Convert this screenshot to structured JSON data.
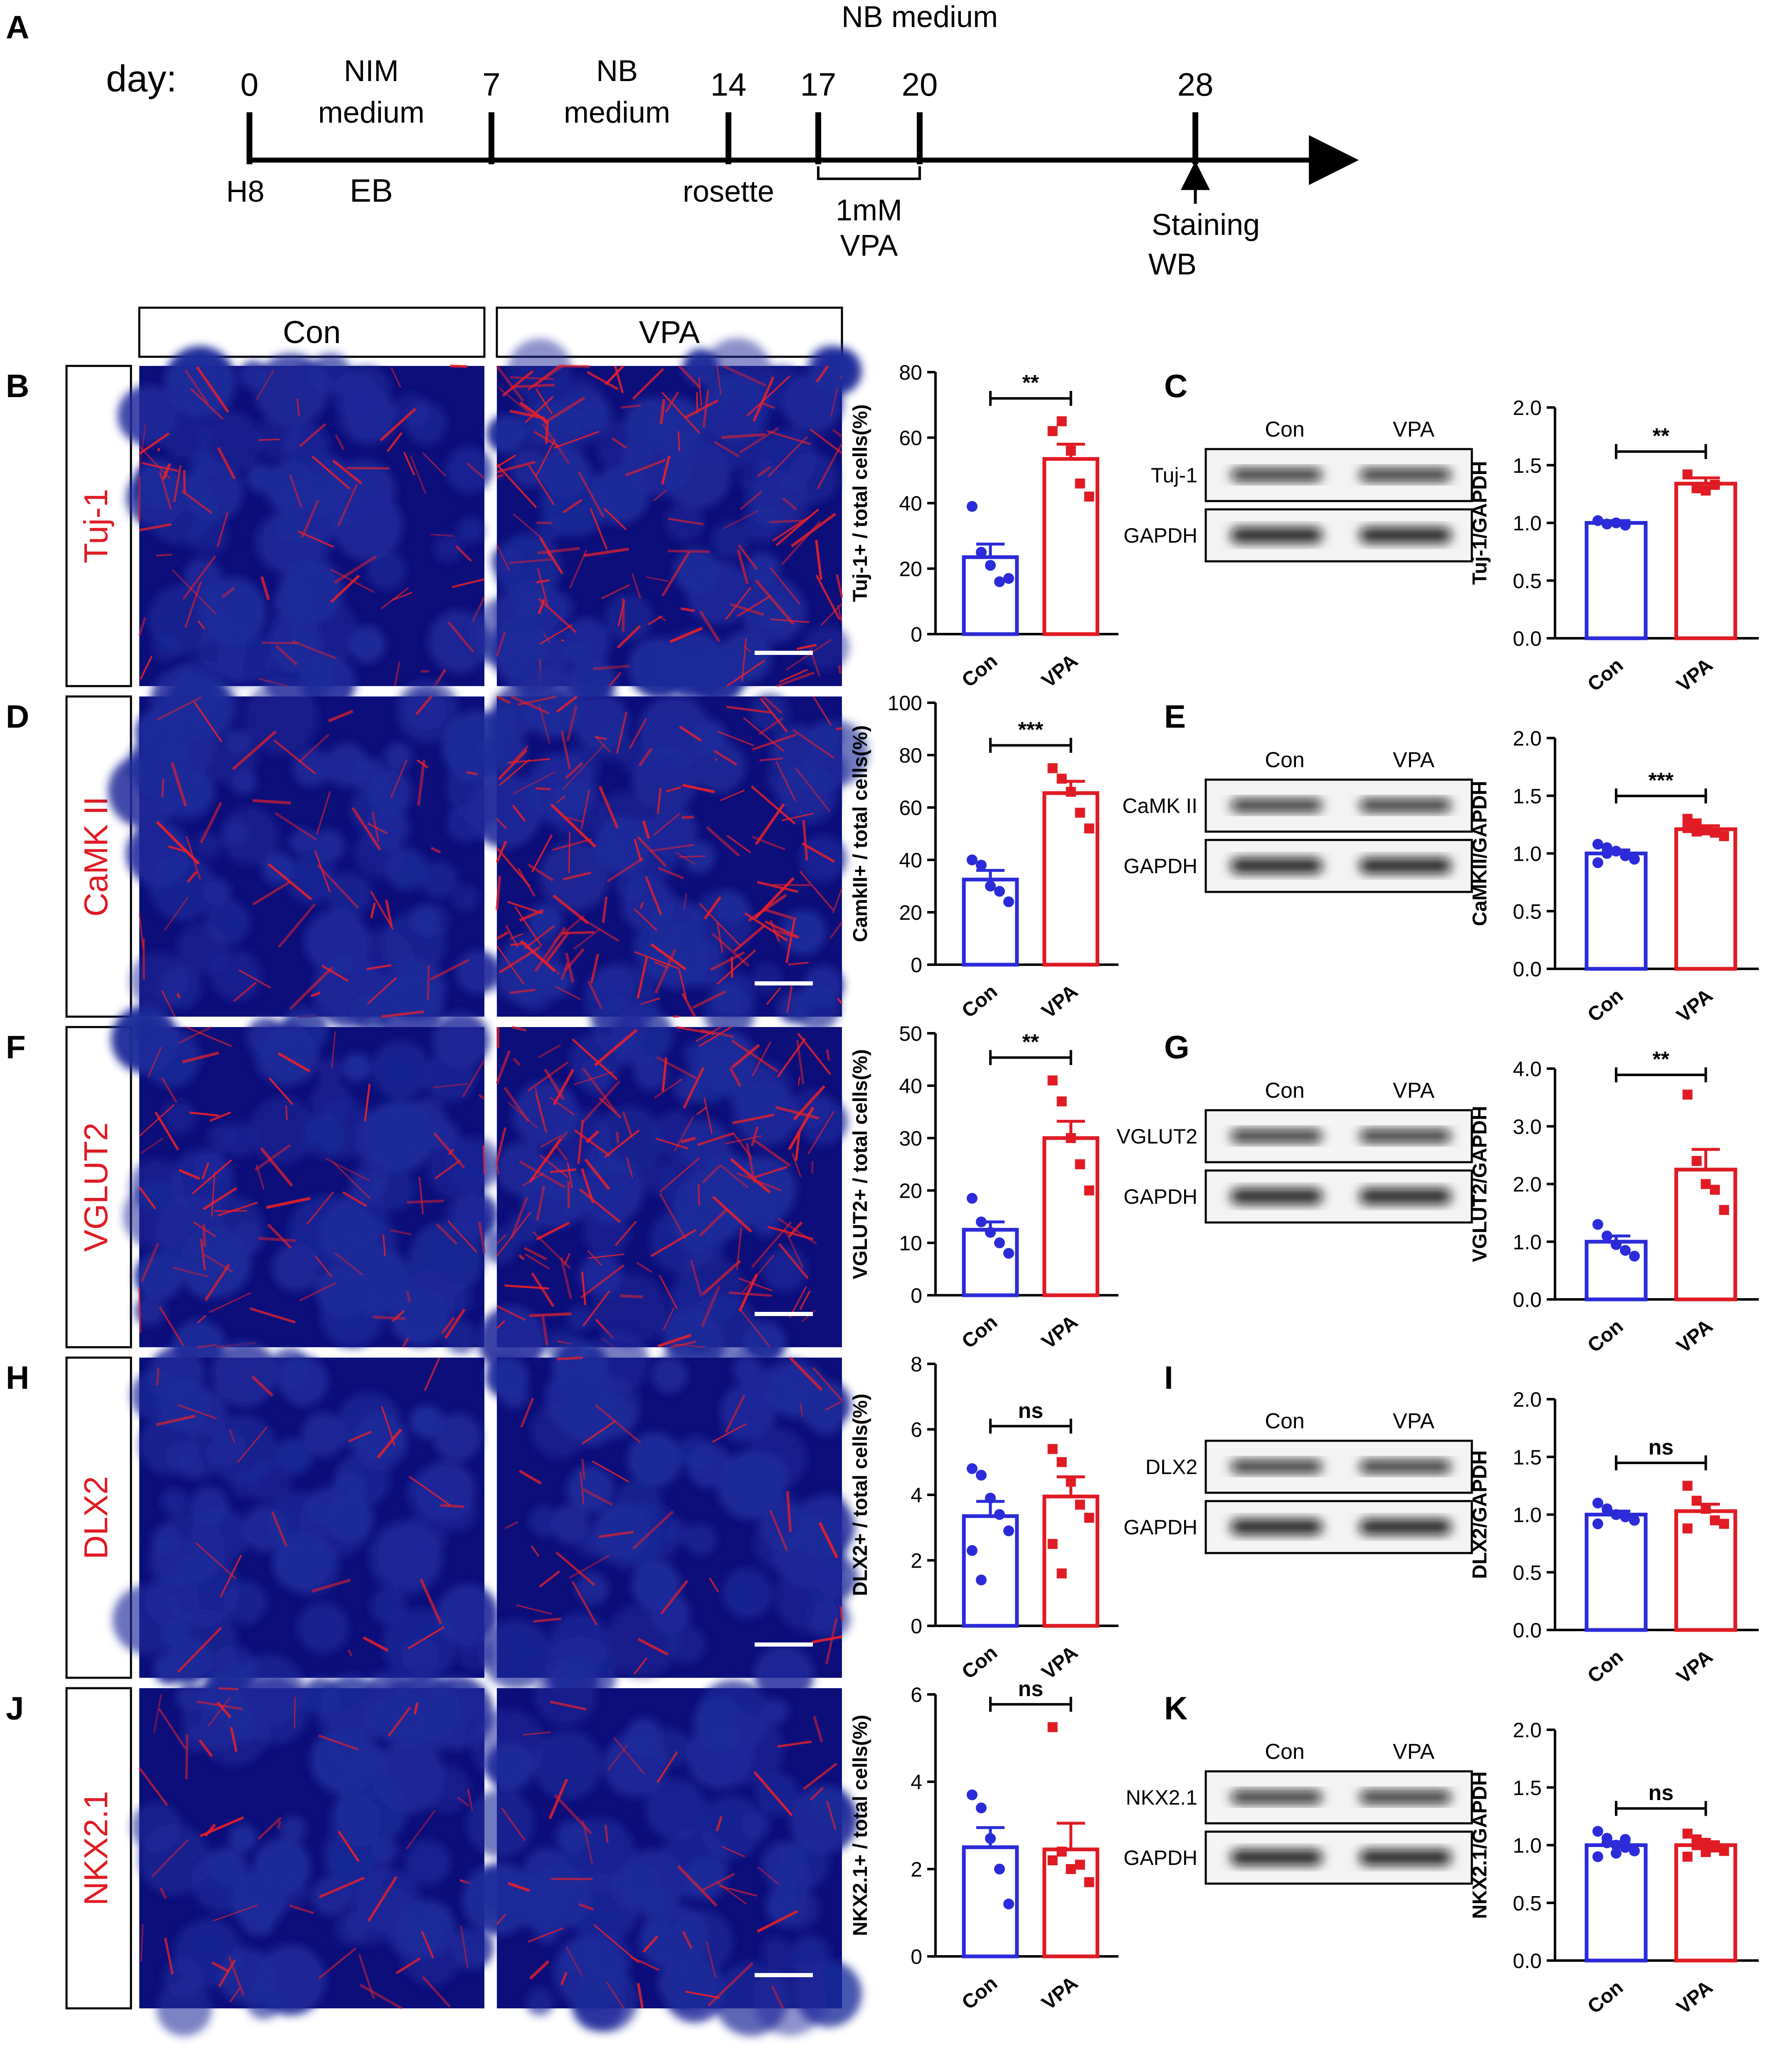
{
  "panels": {
    "A": "A",
    "B": "B",
    "C": "C",
    "D": "D",
    "E": "E",
    "F": "F",
    "G": "G",
    "H": "H",
    "I": "I",
    "J": "J",
    "K": "K"
  },
  "timeline": {
    "day_label": "day:",
    "days": [
      "0",
      "7",
      "14",
      "17",
      "20",
      "28"
    ],
    "stage_top": [
      "NIM",
      "medium",
      "NB",
      "medium",
      "NB medium"
    ],
    "below": [
      "H8",
      "EB",
      "rosette",
      "1mM",
      "VPA",
      "Staining",
      "WB"
    ]
  },
  "column_headers": [
    "Con",
    "VPA"
  ],
  "rows": [
    {
      "marker": "Tuj-1",
      "micrograph_colors": [
        "#1d2a9a",
        "#e8202a"
      ],
      "quant_chart": {
        "type": "bar",
        "categories": [
          "Con",
          "VPA"
        ],
        "values": [
          23.5,
          53.5
        ],
        "sem": [
          4,
          4.5
        ],
        "points": [
          [
            39,
            25,
            21,
            16,
            17
          ],
          [
            62,
            65,
            56,
            46,
            42
          ]
        ],
        "ylabel": "Tuj-1+ / total cells(%)",
        "ylim": [
          0,
          80
        ],
        "ticks": [
          "0",
          "20",
          "40",
          "60",
          "80"
        ],
        "significance": "**"
      },
      "blot": {
        "header": [
          "Con",
          "VPA"
        ],
        "bands": [
          "Tuj-1",
          "GAPDH"
        ]
      },
      "blot_chart": {
        "type": "bar",
        "categories": [
          "Con",
          "VPA"
        ],
        "values": [
          1.0,
          1.34
        ],
        "sem": [
          0.02,
          0.05
        ],
        "points": [
          [
            1.02,
            0.99,
            1.0,
            0.98
          ],
          [
            1.42,
            1.3,
            1.28,
            1.33
          ]
        ],
        "ylabel": "Tuj-1/GAPDH",
        "ylim": [
          0,
          2.0
        ],
        "ticks": [
          "0.0",
          "0.5",
          "1.0",
          "1.5",
          "2.0"
        ],
        "significance": "**"
      }
    },
    {
      "marker": "CaMK II",
      "micrograph_colors": [
        "#1d2a9a",
        "#e8202a"
      ],
      "quant_chart": {
        "type": "bar",
        "categories": [
          "Con",
          "VPA"
        ],
        "values": [
          32.5,
          65.5
        ],
        "sem": [
          3.5,
          4.5
        ],
        "points": [
          [
            40,
            38,
            30,
            28,
            24
          ],
          [
            75,
            71,
            66,
            58,
            52
          ]
        ],
        "ylabel": "CamkII+ / total cells(%)",
        "ylim": [
          0,
          100
        ],
        "ticks": [
          "0",
          "20",
          "40",
          "60",
          "80",
          "100"
        ],
        "significance": "***"
      },
      "blot": {
        "header": [
          "Con",
          "VPA"
        ],
        "bands": [
          "CaMK II",
          "GAPDH"
        ]
      },
      "blot_chart": {
        "type": "bar",
        "categories": [
          "Con",
          "VPA"
        ],
        "values": [
          1.0,
          1.21
        ],
        "sem": [
          0.03,
          0.03
        ],
        "points": [
          [
            1.08,
            1.05,
            1.02,
            0.98,
            0.95,
            0.92,
            1.0
          ],
          [
            1.3,
            1.26,
            1.2,
            1.18,
            1.15,
            1.22,
            1.19
          ]
        ],
        "ylabel": "CaMKII/GAPDH",
        "ylim": [
          0,
          2.0
        ],
        "ticks": [
          "0.0",
          "0.5",
          "1.0",
          "1.5",
          "2.0"
        ],
        "significance": "***"
      }
    },
    {
      "marker": "VGLUT2",
      "micrograph_colors": [
        "#1d2a9a",
        "#e8202a"
      ],
      "quant_chart": {
        "type": "bar",
        "categories": [
          "Con",
          "VPA"
        ],
        "values": [
          12.5,
          30
        ],
        "sem": [
          1.5,
          3.2
        ],
        "points": [
          [
            18.5,
            14,
            12,
            10,
            8
          ],
          [
            41,
            37,
            30,
            25,
            20
          ]
        ],
        "ylabel": "VGLUT2+ / total cells(%)",
        "ylim": [
          0,
          50
        ],
        "ticks": [
          "0",
          "10",
          "20",
          "30",
          "40",
          "50"
        ],
        "significance": "**"
      },
      "blot": {
        "header": [
          "Con",
          "VPA"
        ],
        "bands": [
          "VGLUT2",
          "GAPDH"
        ]
      },
      "blot_chart": {
        "type": "bar",
        "categories": [
          "Con",
          "VPA"
        ],
        "values": [
          1.0,
          2.25
        ],
        "sem": [
          0.1,
          0.35
        ],
        "points": [
          [
            1.3,
            1.1,
            0.95,
            0.85,
            0.75
          ],
          [
            3.55,
            2.4,
            2.0,
            1.9,
            1.55
          ]
        ],
        "ylabel": "VGLUT2/GAPDH",
        "ylim": [
          0,
          4.0
        ],
        "ticks": [
          "0.0",
          "1.0",
          "2.0",
          "3.0",
          "4.0"
        ],
        "significance": "**"
      }
    },
    {
      "marker": "DLX2",
      "micrograph_colors": [
        "#1d2a9a",
        "#e8202a"
      ],
      "quant_chart": {
        "type": "bar",
        "categories": [
          "Con",
          "VPA"
        ],
        "values": [
          3.35,
          3.95
        ],
        "sem": [
          0.45,
          0.6
        ],
        "points": [
          [
            4.8,
            4.6,
            3.9,
            3.4,
            2.9,
            2.3,
            1.4
          ],
          [
            5.4,
            5.0,
            4.4,
            3.7,
            3.3,
            2.5,
            1.6
          ]
        ],
        "ylabel": "DLX2+ / total cells(%)",
        "ylim": [
          0,
          8
        ],
        "ticks": [
          "0",
          "2",
          "4",
          "6",
          "8"
        ],
        "significance": "ns"
      },
      "blot": {
        "header": [
          "Con",
          "VPA"
        ],
        "bands": [
          "DLX2",
          "GAPDH"
        ]
      },
      "blot_chart": {
        "type": "bar",
        "categories": [
          "Con",
          "VPA"
        ],
        "values": [
          1.0,
          1.03
        ],
        "sem": [
          0.03,
          0.06
        ],
        "points": [
          [
            1.1,
            1.05,
            1.0,
            0.98,
            0.95,
            0.92
          ],
          [
            1.25,
            1.12,
            1.05,
            0.95,
            0.92,
            0.88
          ]
        ],
        "ylabel": "DLX2/GAPDH",
        "ylim": [
          0,
          2.0
        ],
        "ticks": [
          "0.0",
          "0.5",
          "1.0",
          "1.5",
          "2.0"
        ],
        "significance": "ns"
      }
    },
    {
      "marker": "NKX2.1",
      "micrograph_colors": [
        "#1d2a9a",
        "#e8202a"
      ],
      "quant_chart": {
        "type": "bar",
        "categories": [
          "Con",
          "VPA"
        ],
        "values": [
          2.5,
          2.45
        ],
        "sem": [
          0.45,
          0.6
        ],
        "points": [
          [
            3.7,
            3.4,
            2.7,
            2.0,
            1.2
          ],
          [
            5.25,
            2.4,
            2.0,
            2.1,
            1.7,
            2.2
          ]
        ],
        "ylabel": "NKX2.1+ / total cells(%)",
        "ylim": [
          0,
          6
        ],
        "ticks": [
          "0",
          "2",
          "4",
          "6"
        ],
        "significance": "ns"
      },
      "blot": {
        "header": [
          "Con",
          "VPA"
        ],
        "bands": [
          "NKX2.1",
          "GAPDH"
        ]
      },
      "blot_chart": {
        "type": "bar",
        "categories": [
          "Con",
          "VPA"
        ],
        "values": [
          1.0,
          1.0
        ],
        "sem": [
          0.03,
          0.03
        ],
        "points": [
          [
            1.12,
            1.06,
            1.0,
            0.98,
            0.95,
            0.9,
            1.02,
            0.93,
            1.05
          ],
          [
            1.1,
            1.05,
            1.02,
            0.98,
            0.95,
            0.9,
            1.0,
            0.94
          ]
        ],
        "ylabel": "NKX2.1/GAPDH",
        "ylim": [
          0,
          2.0
        ],
        "ticks": [
          "0.0",
          "0.5",
          "1.0",
          "1.5",
          "2.0"
        ],
        "significance": "ns"
      }
    }
  ]
}
